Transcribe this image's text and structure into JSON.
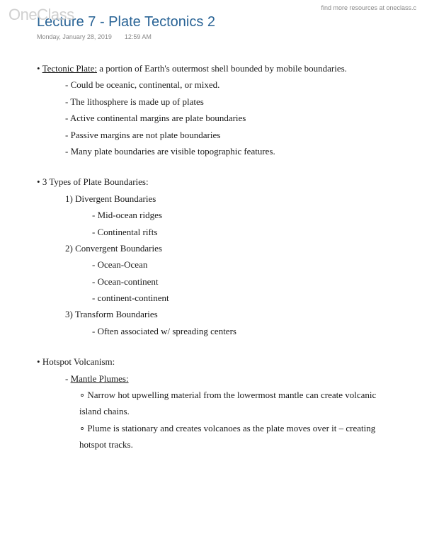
{
  "watermark": {
    "prefix": "One",
    "suffix": "Class"
  },
  "headerLink": "find more resources at oneclass.c",
  "title": "Lecture 7 - Plate Tectonics 2",
  "meta": {
    "date": "Monday, January 28, 2019",
    "time": "12:59 AM"
  },
  "notes": {
    "sec1": {
      "lead": "Tectonic Plate: a portion of Earth's outermost shell bounded by mobile boundaries.",
      "leadTerm": "Tectonic Plate:",
      "leadRest": " a portion of Earth's outermost shell bounded by mobile boundaries.",
      "items": [
        "Could be oceanic, continental, or mixed.",
        "The lithosphere is made up of plates",
        "Active continental margins are plate boundaries",
        "Passive margins are not plate boundaries",
        "Many plate boundaries are visible topographic features."
      ]
    },
    "sec2": {
      "lead": "3 Types of Plate Boundaries:",
      "g1": {
        "title": "1) Divergent Boundaries",
        "items": [
          "Mid-ocean ridges",
          "Continental rifts"
        ]
      },
      "g2": {
        "title": "2) Convergent Boundaries",
        "items": [
          "Ocean-Ocean",
          "Ocean-continent",
          "continent-continent"
        ]
      },
      "g3": {
        "title": "3) Transform Boundaries",
        "items": [
          "Often associated w/ spreading centers"
        ]
      }
    },
    "sec3": {
      "lead": "Hotspot Volcanism:",
      "sub": "Mantle Plumes:",
      "items": [
        "Narrow hot upwelling material from the lowermost mantle can create volcanic island chains.",
        "Plume is stationary and creates volcanoes as the plate moves over it – creating hotspot tracks."
      ]
    }
  }
}
